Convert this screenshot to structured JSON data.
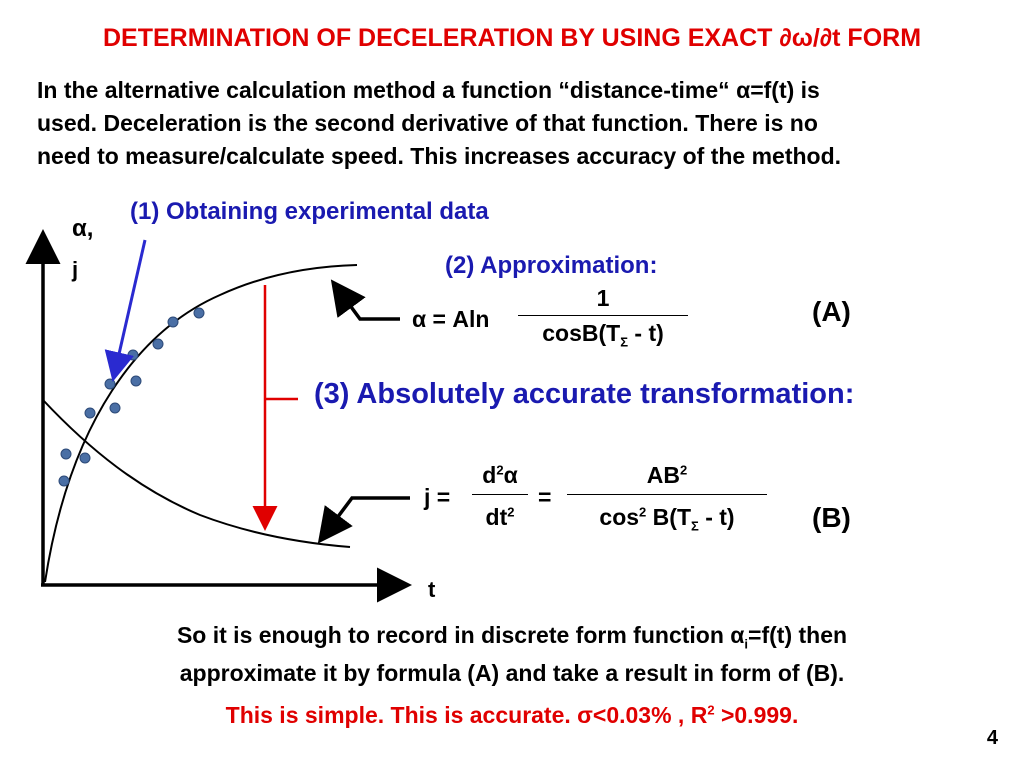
{
  "title": "DETERMINATION OF DECELERATION BY USING EXACT ∂ω/∂t  FORM",
  "intro": {
    "line1": "In the alternative calculation method a function “distance-time“ α=f(t) is",
    "line2": "used. Deceleration is the second derivative of that function. There is no",
    "line3": "need to measure/calculate speed. This increases accuracy of the method."
  },
  "diagram": {
    "step1": "(1) Obtaining experimental data",
    "step2": "(2) Approximation:",
    "step3": "(3) Absolutely accurate transformation:",
    "y_axis_label_a": "α,",
    "y_axis_label_j": "j",
    "x_axis_label": "t",
    "colors": {
      "arrow_blue": "#2a2ad0",
      "red_line": "#e00000",
      "points": "#4a6fa5"
    }
  },
  "formula_a": {
    "lhs": "α = Aln",
    "numerator": "1",
    "denominator_main": "cosB(T",
    "denominator_sub": "Σ",
    "denominator_tail": " - t)",
    "tag": "(A)"
  },
  "formula_b": {
    "lhs": "j =",
    "frac1_num": "d",
    "frac1_num_sup": "2",
    "frac1_num_tail": "α",
    "frac1_den": "dt",
    "frac1_den_sup": "2",
    "eq": "=",
    "frac2_num": "AB",
    "frac2_num_sup": "2",
    "frac2_den_a": "cos",
    "frac2_den_sup": "2",
    "frac2_den_b": " B(T",
    "frac2_den_sub": "Σ",
    "frac2_den_c": " - t)",
    "tag": "(B)"
  },
  "footer": {
    "line1_a": "So it is enough to record in discrete form function α",
    "line1_sub": "i",
    "line1_b": "=f(t)  then",
    "line2": "approximate it by formula (A) and take a result in form of (B).",
    "line3_a": "This is simple. This is accurate. σ<0.03% , R",
    "line3_sup": "2",
    "line3_b": " >0.999."
  },
  "page_number": "4"
}
